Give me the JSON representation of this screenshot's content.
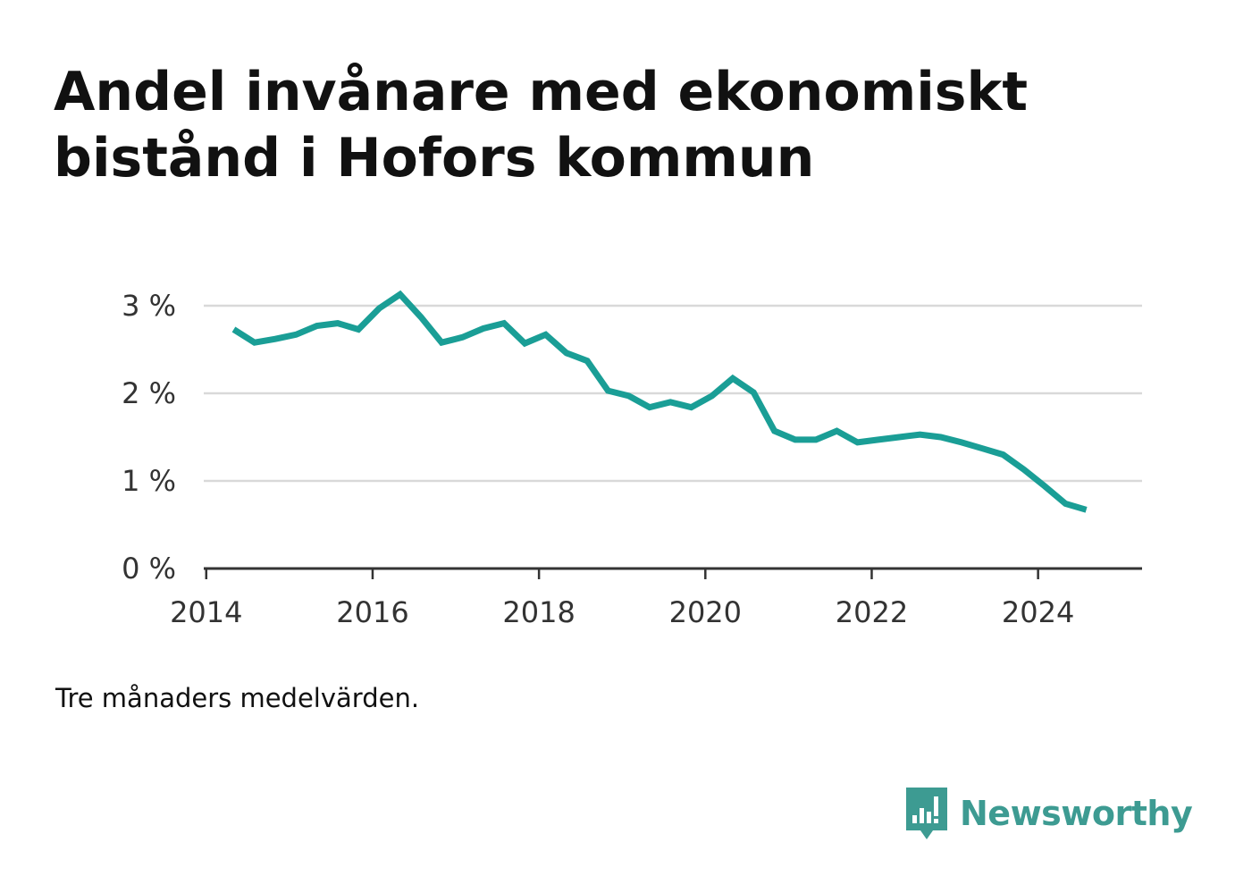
{
  "title_lines": [
    "Andel invånare med ekonomiskt",
    "bistånd i Hofors kommun"
  ],
  "note": "Tre månaders medelvärden.",
  "brand": {
    "name": "Newsworthy",
    "icon": "newsworthy-logo-icon",
    "color": "#3d9b92"
  },
  "colors": {
    "line": "#1a9e96",
    "grid": "#d9d9d9",
    "axis": "#333333"
  },
  "chart_data": {
    "type": "line",
    "title": "Andel invånare med ekonomiskt bistånd i Hofors kommun",
    "xlabel": "",
    "ylabel": "",
    "xlim": [
      2013.97,
      2025.25
    ],
    "ylim": [
      0,
      3
    ],
    "x_ticks": [
      2014,
      2016,
      2018,
      2020,
      2022,
      2024
    ],
    "y_ticks": [
      0,
      1,
      2,
      3
    ],
    "y_tick_labels": [
      "0 %",
      "1 %",
      "2 %",
      "3 %"
    ],
    "grid": "horizontal",
    "series": [
      {
        "x": [
          2014.33,
          2014.58,
          2014.83,
          2015.08,
          2015.33,
          2015.58,
          2015.83,
          2016.08,
          2016.33,
          2016.58,
          2016.83,
          2017.08,
          2017.33,
          2017.58,
          2017.83,
          2018.08,
          2018.33,
          2018.58,
          2018.83,
          2019.08,
          2019.33,
          2019.58,
          2019.83,
          2020.08,
          2020.33,
          2020.58,
          2020.83,
          2021.08,
          2021.33,
          2021.58,
          2021.83,
          2022.08,
          2022.33,
          2022.58,
          2022.83,
          2023.08,
          2023.33,
          2023.58,
          2023.83,
          2024.08,
          2024.33,
          2024.58
        ],
        "values": [
          2.73,
          2.58,
          2.62,
          2.67,
          2.77,
          2.8,
          2.73,
          2.97,
          3.13,
          2.87,
          2.58,
          2.64,
          2.74,
          2.8,
          2.57,
          2.67,
          2.46,
          2.37,
          2.03,
          1.97,
          1.84,
          1.9,
          1.84,
          1.97,
          2.17,
          2.01,
          1.57,
          1.47,
          1.47,
          1.57,
          1.44,
          1.47,
          1.5,
          1.53,
          1.5,
          1.44,
          1.37,
          1.3,
          1.13,
          0.94,
          0.74,
          0.67
        ]
      }
    ]
  }
}
